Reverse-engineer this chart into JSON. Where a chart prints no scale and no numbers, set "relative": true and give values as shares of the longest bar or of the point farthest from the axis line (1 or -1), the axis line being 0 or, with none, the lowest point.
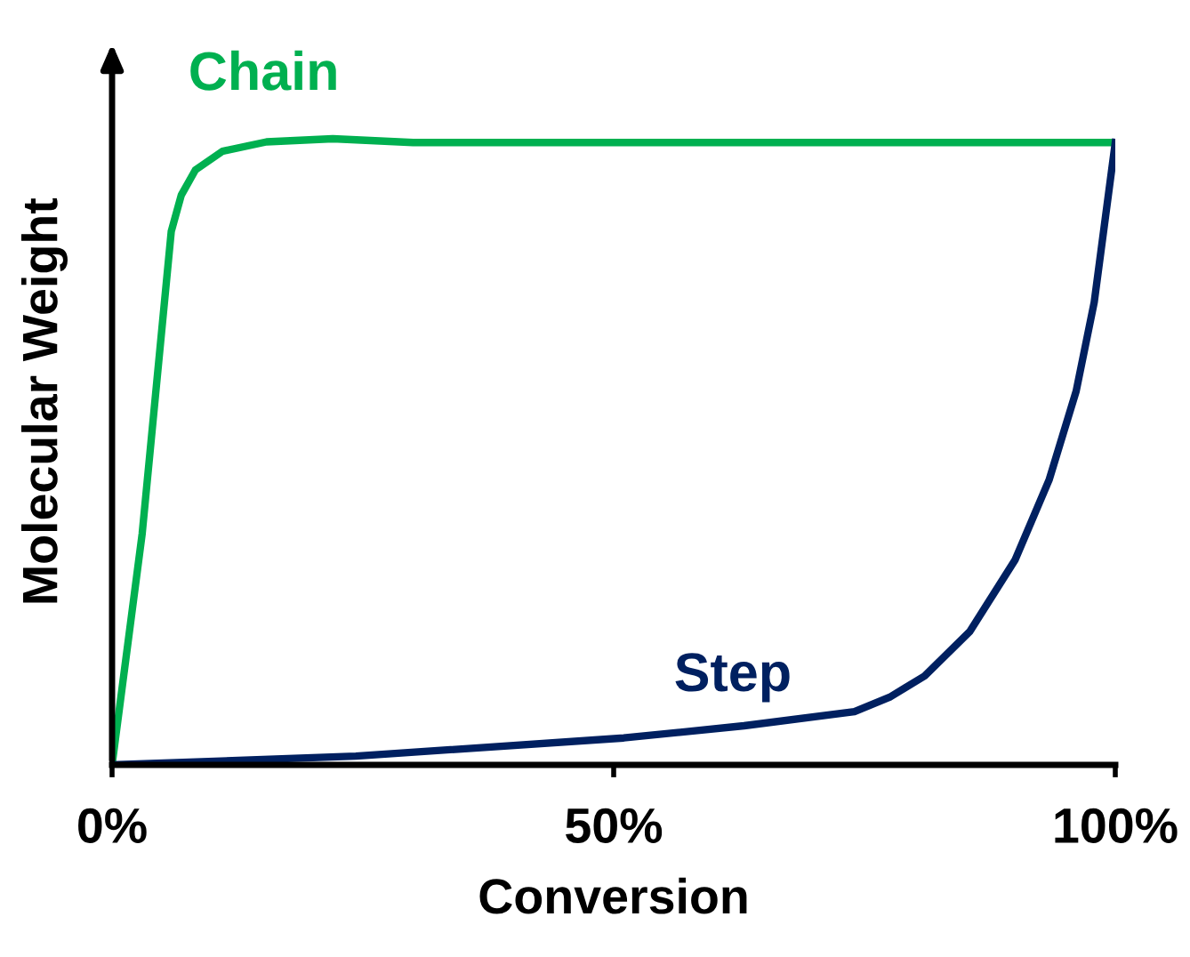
{
  "chart_data": {
    "type": "line",
    "relative": true,
    "xlabel": "Conversion",
    "ylabel": "Molecular Weight",
    "xlim": [
      0,
      100
    ],
    "xticks": [
      {
        "value": 0,
        "label": "0%"
      },
      {
        "value": 50,
        "label": "50%"
      },
      {
        "value": 100,
        "label": "100%"
      }
    ],
    "grid": false,
    "marker": "none",
    "line_style": "solid",
    "series": [
      {
        "name": "Chain",
        "color": "#00b050",
        "x": [
          0,
          3,
          5.9,
          6.9,
          8.3,
          11,
          15.4,
          22,
          30,
          100
        ],
        "values": [
          0,
          0.369,
          0.852,
          0.91,
          0.95,
          0.98,
          0.995,
          1.0,
          0.994,
          0.994
        ]
      },
      {
        "name": "Step",
        "color": "#002060",
        "x": [
          0,
          24.3,
          51,
          63,
          74,
          77.5,
          81,
          85.5,
          90,
          93.4,
          96.1,
          97.9,
          100
        ],
        "values": [
          0,
          0.014,
          0.043,
          0.0625,
          0.085,
          0.108,
          0.142,
          0.213,
          0.327,
          0.455,
          0.597,
          0.739,
          0.994
        ]
      }
    ]
  }
}
